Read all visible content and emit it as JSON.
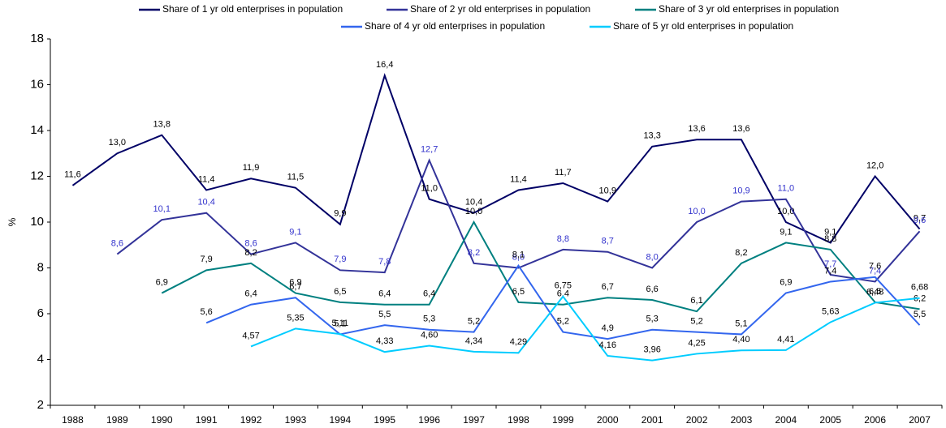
{
  "chart_data": {
    "type": "line",
    "y_label": "%",
    "categories": [
      "1988",
      "1989",
      "1990",
      "1991",
      "1992",
      "1993",
      "1994",
      "1995",
      "1996",
      "1997",
      "1998",
      "1999",
      "2000",
      "2001",
      "2002",
      "2003",
      "2004",
      "2005",
      "2006",
      "2007"
    ],
    "ylim": [
      2,
      18
    ],
    "yticks": [
      2,
      4,
      6,
      8,
      10,
      12,
      14,
      16,
      18
    ],
    "series": [
      {
        "name": "Share of 1 yr old enterprises in population",
        "color": "#000066",
        "label_color": "#000000",
        "values": [
          11.6,
          13.0,
          13.8,
          11.4,
          11.9,
          11.5,
          9.9,
          16.4,
          11.0,
          10.4,
          11.4,
          11.7,
          10.9,
          13.3,
          13.6,
          13.6,
          10.0,
          9.1,
          12.0,
          9.7
        ],
        "value_labels": [
          "11,6",
          "13,0",
          "13,8",
          "11,4",
          "11,9",
          "11,5",
          "9,9",
          "16,4",
          "11,0",
          "10,4",
          "11,4",
          "11,7",
          "10,9",
          "13,3",
          "13,6",
          "13,6",
          "10,0",
          "9,1",
          "12,0",
          "9,7"
        ]
      },
      {
        "name": "Share of 2 yr old enterprises in population",
        "color": "#333399",
        "label_color": "#3333cc",
        "values": [
          null,
          8.6,
          10.1,
          10.4,
          8.6,
          9.1,
          7.9,
          7.8,
          12.7,
          8.2,
          8.0,
          8.8,
          8.7,
          8.0,
          10.0,
          10.9,
          11.0,
          7.7,
          7.4,
          9.6
        ],
        "value_labels": [
          null,
          "8,6",
          "10,1",
          "10,4",
          "8,6",
          "9,1",
          "7,9",
          "7,8",
          "12,7",
          "8,2",
          "8,0",
          "8,8",
          "8,7",
          "8,0",
          "10,0",
          "10,9",
          "11,0",
          "7,7",
          "7,4",
          "9,6"
        ]
      },
      {
        "name": "Share of 3 yr old enterprises in population",
        "color": "#008080",
        "label_color": "#000000",
        "values": [
          null,
          null,
          6.9,
          7.9,
          8.2,
          6.9,
          6.5,
          6.4,
          6.4,
          10.0,
          6.5,
          6.4,
          6.7,
          6.6,
          6.1,
          8.2,
          9.1,
          8.8,
          6.5,
          6.2
        ],
        "value_labels": [
          null,
          null,
          "6,9",
          "7,9",
          "8,2",
          "6,9",
          "6,5",
          "6,4",
          "6,4",
          "10,0",
          "6,5",
          "6,4",
          "6,7",
          "6,6",
          "6,1",
          "8,2",
          "9,1",
          "8,8",
          "6,5",
          "6,2"
        ]
      },
      {
        "name": "Share of 4 yr old enterprises in population",
        "color": "#3366ee",
        "label_color": "#000000",
        "values": [
          null,
          null,
          null,
          5.6,
          6.4,
          6.7,
          5.1,
          5.5,
          5.3,
          5.2,
          8.1,
          5.2,
          4.9,
          5.3,
          5.2,
          5.1,
          6.9,
          7.4,
          7.6,
          5.5
        ],
        "value_labels": [
          null,
          null,
          null,
          "5,6",
          "6,4",
          "6,7",
          "5,1",
          "5,5",
          "5,3",
          "5,2",
          "8,1",
          "5,2",
          "4,9",
          "5,3",
          "5,2",
          "5,1",
          "6,9",
          "7,4",
          "7,6",
          "5,5"
        ]
      },
      {
        "name": "Share of 5 yr old enterprises in population",
        "color": "#00ccff",
        "label_color": "#000000",
        "values": [
          null,
          null,
          null,
          null,
          4.57,
          5.35,
          5.11,
          4.33,
          4.6,
          4.34,
          4.29,
          6.75,
          4.16,
          3.96,
          4.25,
          4.4,
          4.41,
          5.63,
          6.48,
          6.68
        ],
        "value_labels": [
          null,
          null,
          null,
          null,
          "4,57",
          "5,35",
          "5,11",
          "4,33",
          "4,60",
          "4,34",
          "4,29",
          "6,75",
          "4,16",
          "3,96",
          "4,25",
          "4,40",
          "4,41",
          "5,63",
          "6,48",
          "6,68"
        ]
      }
    ]
  }
}
